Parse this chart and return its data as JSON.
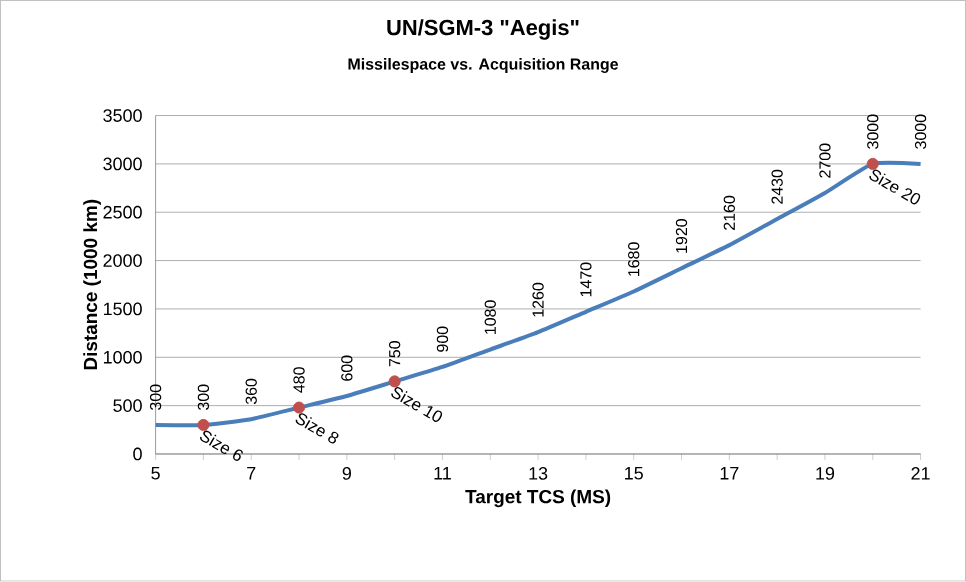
{
  "chart_data": {
    "type": "line",
    "title": "UN/SGM-3 \"Aegis\"",
    "subtitle": "Missilespace vs. Acquisition Range",
    "xlabel": "Target TCS (MS)",
    "ylabel": "Distance (1000 km)",
    "xlim": [
      5,
      21
    ],
    "xticks": [
      5,
      7,
      9,
      11,
      13,
      15,
      17,
      19,
      21
    ],
    "ylim": [
      0,
      3500
    ],
    "yticks": [
      0,
      500,
      1000,
      1500,
      2000,
      2500,
      3000,
      3500
    ],
    "grid": "y",
    "series": [
      {
        "color": "#4a7ebb",
        "marker": "none",
        "data_labels": true,
        "x": [
          5,
          6,
          7,
          8,
          9,
          10,
          11,
          12,
          13,
          14,
          15,
          16,
          17,
          18,
          19,
          20,
          21
        ],
        "values": [
          300,
          300,
          360,
          480,
          600,
          750,
          900,
          1080,
          1260,
          1470,
          1680,
          1920,
          2160,
          2430,
          2700,
          3000,
          3000
        ]
      },
      {
        "type": "scatter",
        "color": "#c0504d",
        "marker": "circle",
        "x": [
          6,
          8,
          10,
          20
        ],
        "values": [
          300,
          480,
          750,
          3000
        ]
      }
    ],
    "annotations": [
      {
        "text": "Size 6",
        "x": 6,
        "y": 300
      },
      {
        "text": "Size 8",
        "x": 8,
        "y": 480
      },
      {
        "text": "Size 10",
        "x": 10,
        "y": 750
      },
      {
        "text": "Size 20",
        "x": 20,
        "y": 3000
      }
    ]
  }
}
